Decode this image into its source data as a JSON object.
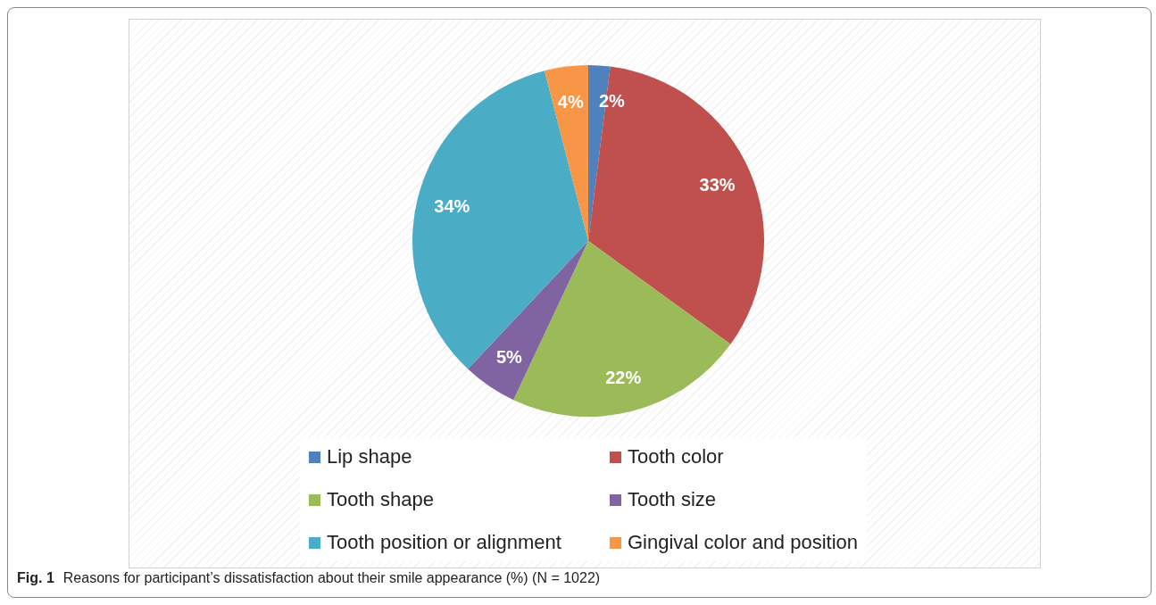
{
  "chart_data": {
    "type": "pie",
    "title": "Reasons for participant’s dissatisfaction about their smile appearance (%) (N = 1022)",
    "annotations": [
      "Fig. 1"
    ],
    "categories": [
      "Lip shape",
      "Tooth color",
      "Tooth shape",
      "Tooth size",
      "Tooth position or alignment",
      "Gingival color and position"
    ],
    "values": [
      2,
      33,
      22,
      5,
      34,
      4
    ],
    "value_labels": [
      "2%",
      "33%",
      "22%",
      "5%",
      "34%",
      "4%"
    ],
    "colors": [
      "#4f81bd",
      "#c0504d",
      "#9bbb59",
      "#8064a2",
      "#4bacc6",
      "#f79646"
    ],
    "legend": "bottom"
  }
}
